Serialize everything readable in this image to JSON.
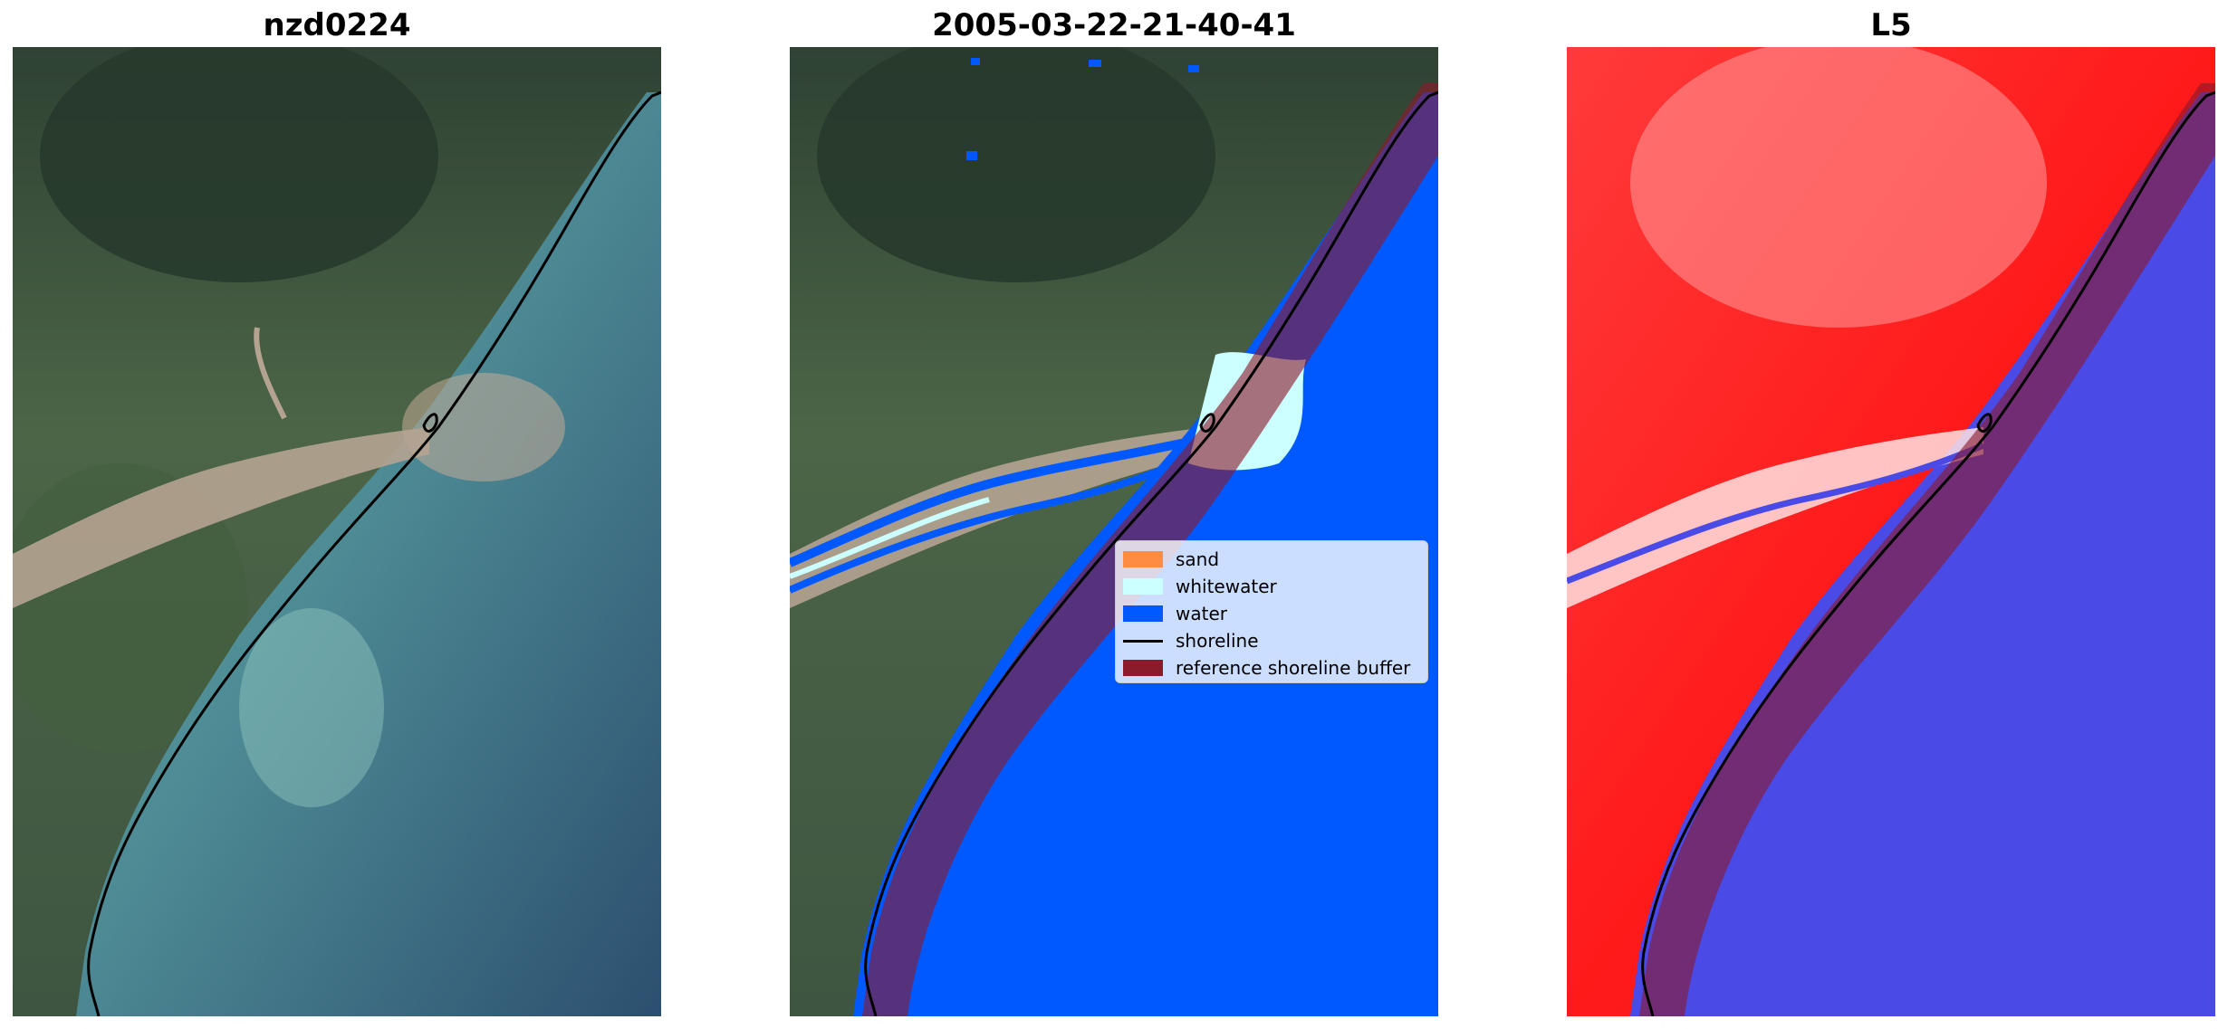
{
  "panels": [
    {
      "title": "nzd0224"
    },
    {
      "title": "2005-03-22-21-40-41"
    },
    {
      "title": "L5"
    }
  ],
  "legend": {
    "placement": "center-right",
    "items": [
      {
        "label": "sand",
        "kind": "patch",
        "color": "#ff8c42"
      },
      {
        "label": "whitewater",
        "kind": "patch",
        "color": "#ccffff"
      },
      {
        "label": "water",
        "kind": "patch",
        "color": "#0059ff"
      },
      {
        "label": "shoreline",
        "kind": "line",
        "color": "#000000"
      },
      {
        "label": "reference shoreline buffer",
        "kind": "patch",
        "color": "#8b1a2b"
      }
    ]
  },
  "colors": {
    "land_forest": "#3b4e3c",
    "land_grass": "#55704e",
    "river_sand": "#b5a391",
    "sea_shallow": "#5f9c9a",
    "sea_deep": "#2f5577",
    "water_class": "#0059ff",
    "index_positive": "#ff1a1a",
    "index_negative": "#4a4ae6"
  }
}
